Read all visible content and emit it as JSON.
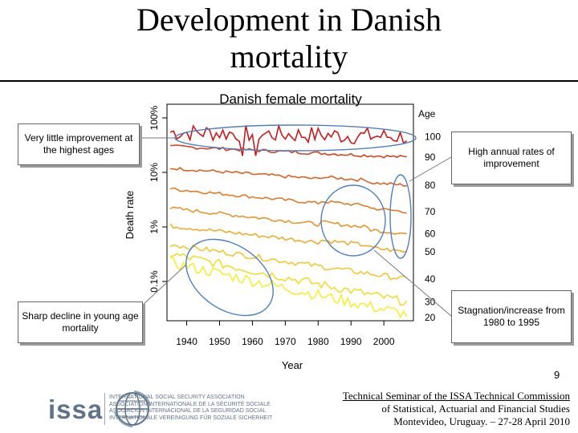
{
  "slide": {
    "title_line1": "Development in Danish",
    "title_line2": "mortality",
    "page_number": "9"
  },
  "callouts": {
    "left_top": "Very little improvement at the highest ages",
    "left_bottom": "Sharp decline in young age mortality",
    "right_top": "High annual rates of improvement",
    "right_bottom": "Stagnation/increase from 1980 to 1995"
  },
  "footer": {
    "line1": "Technical Seminar of the ISSA Technical Commission",
    "line2": "of Statistical, Actuarial and Financial Studies",
    "line3": "Montevideo, Uruguay. – 27-28 April 2010"
  },
  "logo": {
    "word": "issa",
    "lines": [
      "INTERNATIONAL SOCIAL SECURITY ASSOCIATION",
      "ASSOCIATION INTERNATIONALE DE LA SÉCURITÉ SOCIALE",
      "ASOCIACIÓN INTERNACIONAL DE LA SEGURIDAD SOCIAL",
      "INTERNATIONALE VEREINIGUNG FÜR SOZIALE SICHERHEIT"
    ]
  },
  "chart_data": {
    "type": "line",
    "title": "Danish female mortality",
    "xlabel": "Year",
    "ylabel": "Death rate",
    "x_range": [
      1934,
      2009
    ],
    "x_ticks": [
      1940,
      1950,
      1960,
      1970,
      1980,
      1990,
      2000
    ],
    "y_scale": "log",
    "y_ticks": [
      {
        "value": 0.001,
        "label": "0.1%"
      },
      {
        "value": 0.01,
        "label": "1%"
      },
      {
        "value": 0.1,
        "label": "10%"
      },
      {
        "value": 1.0,
        "label": "100%"
      }
    ],
    "legend_title": "Age",
    "series": [
      {
        "name": "100",
        "start": 0.55,
        "end": 0.45,
        "noise": 0.16,
        "color": "#cc1a1a"
      },
      {
        "name": "90",
        "start": 0.3,
        "end": 0.19,
        "noise": 0.03,
        "color": "#d4421e"
      },
      {
        "name": "80",
        "start": 0.12,
        "end": 0.058,
        "noise": 0.03,
        "color": "#dc6222"
      },
      {
        "name": "70",
        "start": 0.05,
        "end": 0.019,
        "noise": 0.03,
        "color": "#e27b25"
      },
      {
        "name": "60",
        "start": 0.022,
        "end": 0.0075,
        "noise": 0.035,
        "color": "#e8962a"
      },
      {
        "name": "50",
        "start": 0.0105,
        "end": 0.0035,
        "noise": 0.04,
        "color": "#edae2c"
      },
      {
        "name": "40",
        "start": 0.0048,
        "end": 0.0011,
        "noise": 0.05,
        "color": "#f1c82f"
      },
      {
        "name": "30",
        "start": 0.0032,
        "end": 0.00042,
        "noise": 0.08,
        "color": "#f3dc30"
      },
      {
        "name": "20",
        "start": 0.0022,
        "end": 0.00025,
        "noise": 0.1,
        "color": "#f7ee32"
      }
    ]
  }
}
